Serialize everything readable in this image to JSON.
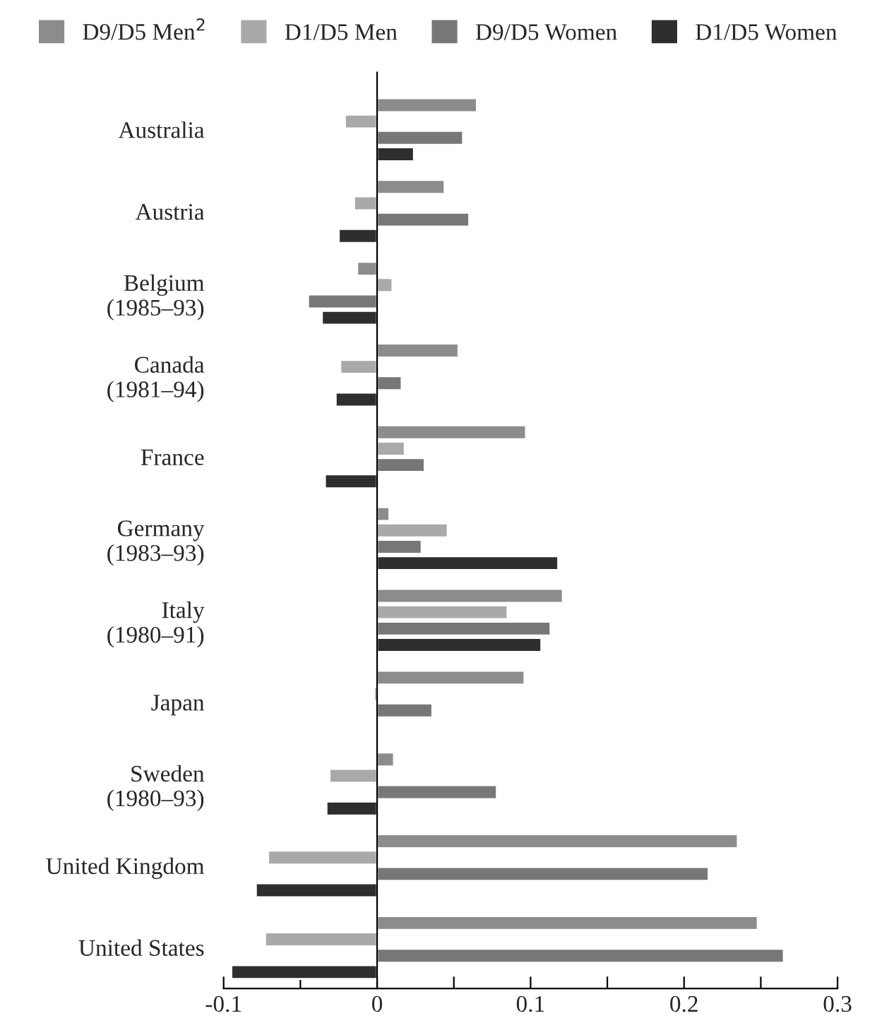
{
  "chart_data": {
    "type": "bar",
    "orientation": "horizontal",
    "categories": [
      "Australia",
      "Austria",
      "Belgium\n(1985–93)",
      "Canada\n(1981–94)",
      "France",
      "Germany\n(1983–93)",
      "Italy\n(1980–91)",
      "Japan",
      "Sweden\n(1980–93)",
      "United Kingdom",
      "United States"
    ],
    "series": [
      {
        "name": "D9/D5 Men$^{2}$",
        "color": "#8c8c8c",
        "values": [
          0.065,
          0.044,
          -0.013,
          0.053,
          0.097,
          0.008,
          0.121,
          0.096,
          0.011,
          0.235,
          0.248
        ]
      },
      {
        "name": "D1/D5 Men",
        "color": "#a9a9a9",
        "values": [
          -0.021,
          -0.015,
          0.01,
          -0.024,
          0.018,
          0.046,
          0.085,
          -0.002,
          -0.031,
          -0.071,
          -0.073
        ]
      },
      {
        "name": "D9/D5 Women",
        "color": "#777777",
        "values": [
          0.056,
          0.06,
          -0.045,
          0.016,
          0.031,
          0.029,
          0.113,
          0.036,
          0.078,
          0.216,
          0.265
        ]
      },
      {
        "name": "D1/D5 Women",
        "color": "#2e2e2e",
        "values": [
          0.024,
          -0.025,
          -0.036,
          -0.027,
          -0.034,
          0.118,
          0.107,
          null,
          -0.033,
          -0.079,
          -0.095
        ]
      }
    ],
    "xlim": [
      -0.1,
      0.3
    ],
    "xticks": [
      -0.1,
      {
        "value": -0.05,
        "label": null
      },
      0,
      {
        "value": 0.05,
        "label": null
      },
      0.1,
      {
        "value": 0.15,
        "label": null
      },
      0.2,
      {
        "value": 0.25,
        "label": null
      },
      0.3
    ],
    "legend": "top"
  }
}
